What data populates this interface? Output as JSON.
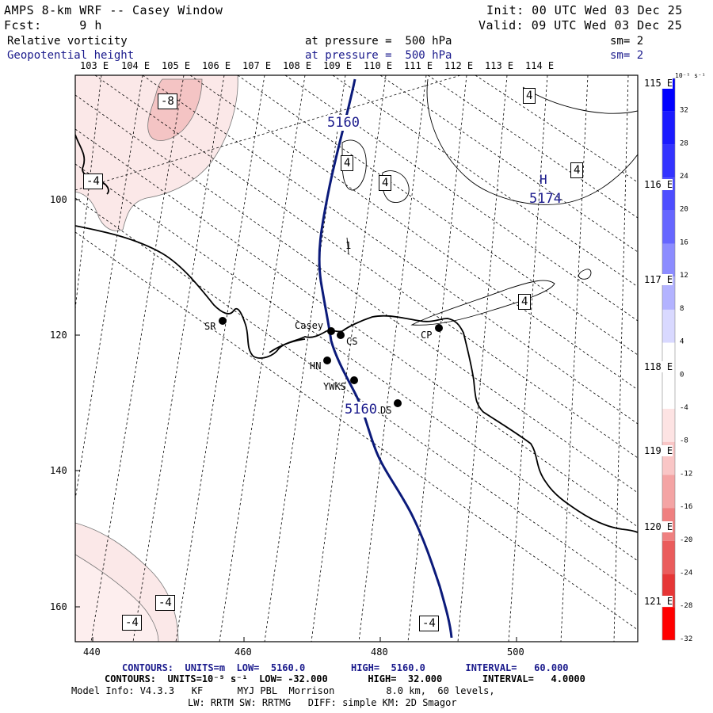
{
  "header": {
    "title": "AMPS 8-km WRF -- Casey Window",
    "init": "Init: 00 UTC Wed 03 Dec 25",
    "fcst": "Fcst:     9 h",
    "valid": "Valid: 09 UTC Wed 03 Dec 25",
    "field1": {
      "name": "Relative vorticity",
      "level": "at pressure =  500 hPa",
      "sm": "sm= 2"
    },
    "field2": {
      "name": "Geopotential height",
      "level": "at pressure =  500 hPa",
      "sm": "sm= 2"
    }
  },
  "colors": {
    "height_contour": "#0b1a7a",
    "coast": "#000000",
    "neg_fill_light": "#fbe9e9",
    "neg_fill_dark": "#f4c4c4"
  },
  "axes": {
    "top_lon_labels": [
      "103 E",
      "104 E",
      "105 E",
      "106 E",
      "107 E",
      "108 E",
      "109 E",
      "110 E",
      "111 E",
      "112 E",
      "113 E",
      "114 E"
    ],
    "right_lon_labels": [
      "115 E",
      "116 E",
      "117 E",
      "118 E",
      "119 E",
      "120 E",
      "121 E"
    ],
    "x_ticks": [
      "440",
      "460",
      "480",
      "500"
    ],
    "y_ticks": [
      "100",
      "120",
      "140",
      "160"
    ]
  },
  "stations": [
    {
      "code": "SR"
    },
    {
      "code": "Casey"
    },
    {
      "code": "CS"
    },
    {
      "code": "CP"
    },
    {
      "code": "HN"
    },
    {
      "code": "YWKS"
    },
    {
      "code": "DS"
    }
  ],
  "contour_labels": {
    "height": [
      "5160",
      "5160"
    ],
    "high_marker": "H",
    "high_value": "5174",
    "vorticity": [
      "-8",
      "-4",
      "4",
      "4",
      "4",
      "4",
      "4",
      "-4",
      "-4",
      "-4"
    ],
    "small_mark": "1"
  },
  "colorbar": {
    "units": "10⁻⁵ s⁻¹",
    "labels": [
      "32",
      "28",
      "24",
      "20",
      "16",
      "12",
      "8",
      "4",
      "0",
      "-4",
      "-8",
      "-12",
      "-16",
      "-20",
      "-24",
      "-28",
      "-32"
    ],
    "colors": [
      "#0000ff",
      "#1a1aff",
      "#3333ff",
      "#4d4dff",
      "#6666ff",
      "#8c8cff",
      "#b3b3ff",
      "#d9d9ff",
      "#ffffff",
      "#ffffff",
      "#fde3e3",
      "#f9c6c6",
      "#f4a4a4",
      "#ef8080",
      "#ea5c5c",
      "#e63636",
      "#ff0000"
    ]
  },
  "footer": {
    "line1": "CONTOURS:  UNITS=m  LOW=  5160.0        HIGH=  5160.0       INTERVAL=   60.000",
    "line2": "CONTOURS:  UNITS=10⁻⁵ s⁻¹  LOW= -32.000       HIGH=  32.000       INTERVAL=   4.0000",
    "line3": "Model Info: V4.3.3   KF      MYJ PBL  Morrison         8.0 km,  60 levels,",
    "line4": "LW: RRTM SW: RRTMG   DIFF: simple KM: 2D Smagor"
  }
}
